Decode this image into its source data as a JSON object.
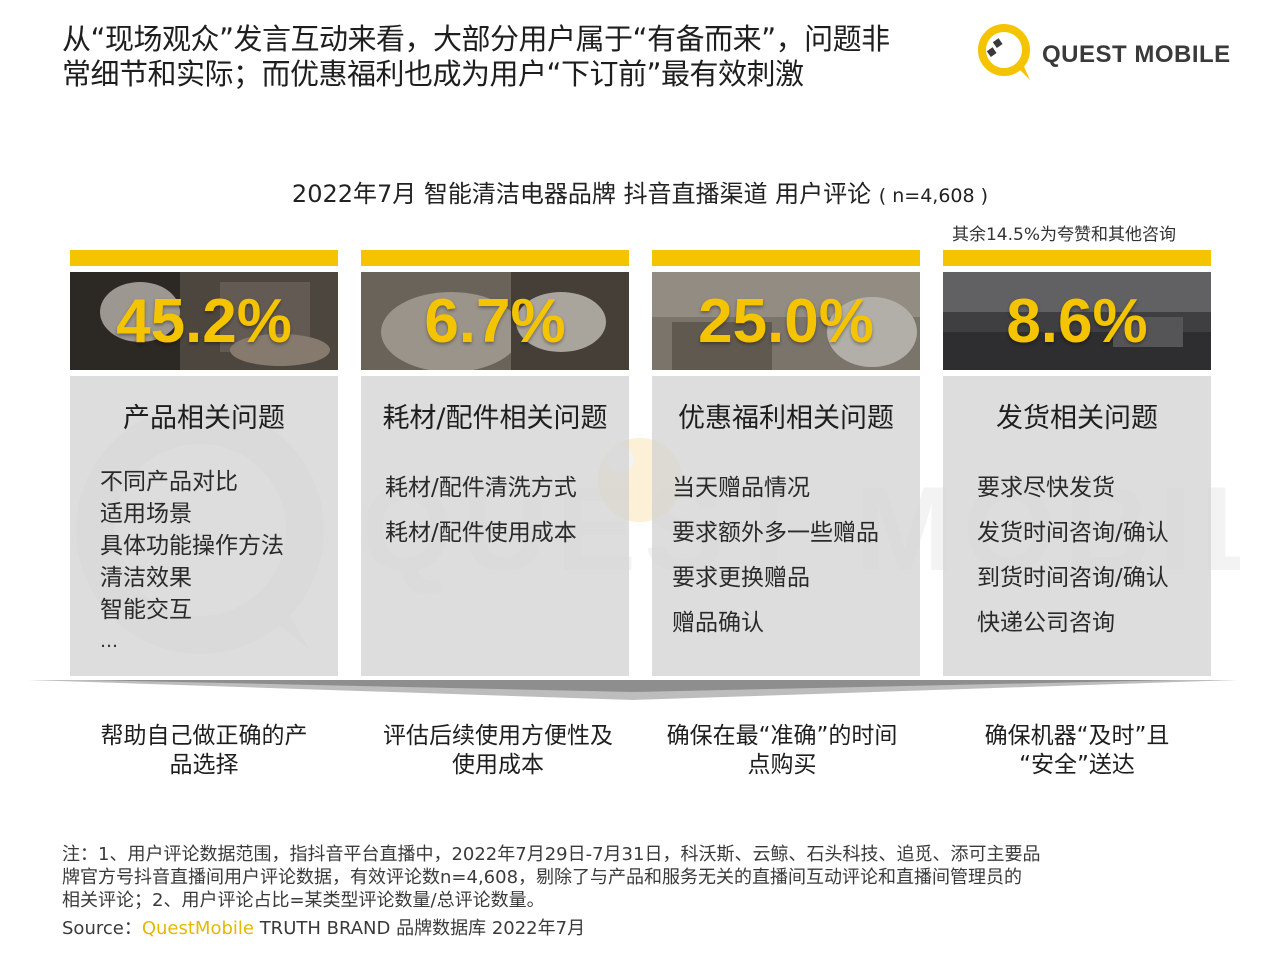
{
  "headline": {
    "line1": "从“现场观众”发言互动来看，大部分用户属于“有备而来”，问题非",
    "line2": "常细节和实际；而优惠福利也成为用户“下订前”最有效刺激"
  },
  "logo": {
    "text": "QUEST MOBILE",
    "icon": "questmobile-logo-icon",
    "color": "#f4c400"
  },
  "chart_title": {
    "main": "2022年7月 智能清洁电器品牌 抖音直播渠道 用户评论",
    "n": "( n=4,608 )"
  },
  "note_right": "其余14.5%为夸赞和其他咨询",
  "chart_data": {
    "type": "table",
    "title": "2022年7月 智能清洁电器品牌 抖音直播渠道 用户评论",
    "sample": "n=4,608",
    "categories": [
      "产品相关问题",
      "耗材/配件相关问题",
      "优惠福利相关问题",
      "发货相关问题"
    ],
    "values": [
      45.2,
      6.7,
      25.0,
      8.6
    ],
    "unit": "%",
    "remainder_note": "其余14.5%为夸赞和其他咨询"
  },
  "cards": [
    {
      "pct": "45.2%",
      "category": "产品相关问题",
      "items": [
        "不同产品对比",
        "适用场景",
        "具体功能操作方法",
        "清洁效果",
        "智能交互",
        "…"
      ],
      "outcome": "帮助自己做正确的产品选择"
    },
    {
      "pct": "6.7%",
      "category": "耗材/配件相关问题",
      "items": [
        "耗材/配件清洗方式",
        "耗材/配件使用成本"
      ],
      "outcome": "评估后续使用方便性及使用成本"
    },
    {
      "pct": "25.0%",
      "category": "优惠福利相关问题",
      "items": [
        "当天赠品情况",
        "要求额外多一些赠品",
        "要求更换赠品",
        "赠品确认"
      ],
      "outcome": "确保在最“准确”的时间点购买"
    },
    {
      "pct": "8.6%",
      "category": "发货相关问题",
      "items": [
        "要求尽快发货",
        "发货时间咨询/确认",
        "到货时间咨询/确认",
        "快递公司咨询"
      ],
      "outcome": "确保机器“及时”且“安全”送达"
    }
  ],
  "outcomes": [
    {
      "line1": "帮助自己做正确的产",
      "line2": "品选择"
    },
    {
      "line1": "评估后续使用方便性及",
      "line2": "使用成本"
    },
    {
      "line1": "确保在最“准确”的时间",
      "line2": "点购买"
    },
    {
      "line1": "确保机器“及时”且",
      "line2": "“安全”送达"
    }
  ],
  "footnote": {
    "line1": "注：1、用户评论数据范围，指抖音平台直播中，2022年7月29日-7月31日，科沃斯、云鲸、石头科技、追觅、添可主要品",
    "line2": "牌官方号抖音直播间用户评论数据，有效评论数n=4,608，剔除了与产品和服务无关的直播间互动评论和直播间管理员的",
    "line3": "相关评论；2、用户评论占比=某类型评论数量/总评论数量。"
  },
  "source": {
    "label": "Source：",
    "brand": "QuestMobile",
    "rest": " TRUTH BRAND 品牌数据库 2022年7月"
  },
  "watermark": "QUEST MOBILE",
  "colors": {
    "accent": "#f4c400",
    "card_body": "#d4d4d4",
    "divider": "#bdbdbd"
  }
}
